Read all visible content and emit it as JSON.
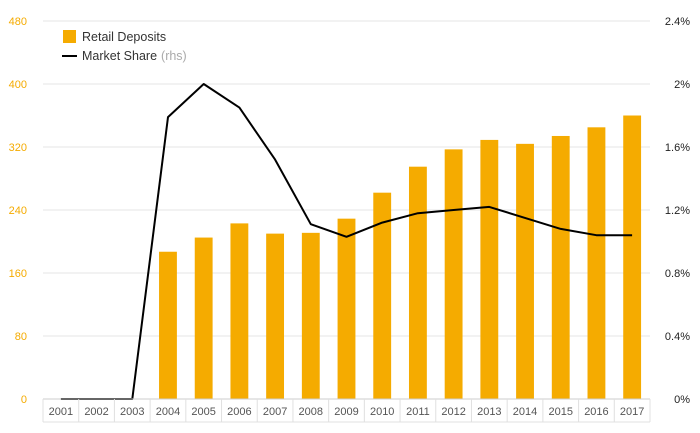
{
  "chart_data": {
    "type": "bar",
    "categories": [
      "2001",
      "2002",
      "2003",
      "2004",
      "2005",
      "2006",
      "2007",
      "2008",
      "2009",
      "2010",
      "2011",
      "2012",
      "2013",
      "2014",
      "2015",
      "2016",
      "2017"
    ],
    "series": [
      {
        "name": "Retail Deposits",
        "type": "bar",
        "axis": "left",
        "color": "#F5AB00",
        "values": [
          null,
          null,
          null,
          187,
          205,
          223,
          210,
          211,
          229,
          262,
          295,
          317,
          329,
          324,
          334,
          345,
          360
        ]
      },
      {
        "name": "Market Share",
        "type": "line",
        "axis": "right",
        "color": "#000000",
        "values": [
          0,
          0,
          0,
          1.79,
          2.0,
          1.85,
          1.52,
          1.11,
          1.03,
          1.12,
          1.18,
          1.2,
          1.22,
          1.15,
          1.08,
          1.04,
          1.04
        ]
      }
    ],
    "legend": {
      "position": "top-left",
      "entries": [
        {
          "label": "Retail Deposits",
          "suffix": ""
        },
        {
          "label": "Market Share",
          "suffix": "(rhs)"
        }
      ]
    },
    "ylim_left": [
      0,
      480
    ],
    "yticks_left": [
      "0",
      "80",
      "160",
      "240",
      "320",
      "400",
      "480"
    ],
    "ylim_right": [
      0,
      2.4
    ],
    "yticks_right": [
      "0%",
      "0.4%",
      "0.8%",
      "1.2%",
      "1.6%",
      "2%",
      "2.4%"
    ],
    "grid": true,
    "colors": {
      "left_axis_text": "#F5AB00",
      "right_axis_text": "#222222",
      "grid": "#e6e6e6"
    }
  }
}
